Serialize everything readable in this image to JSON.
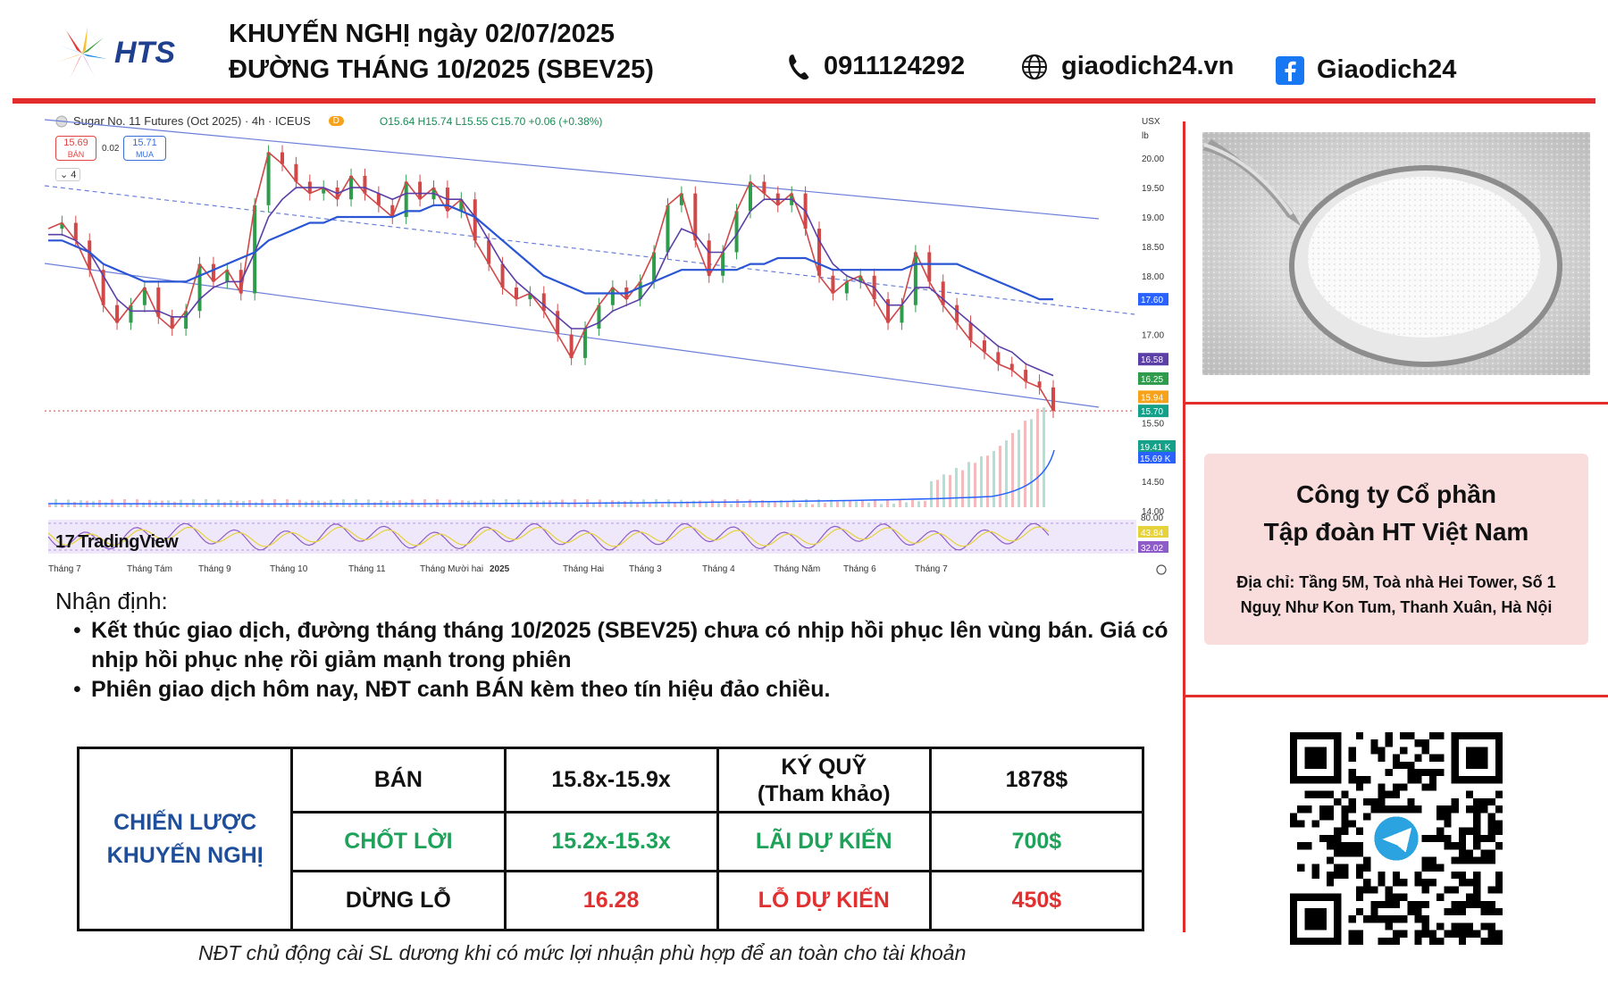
{
  "header": {
    "brand": "HTS",
    "title_line1": "KHUYẾN NGHỊ ngày 02/07/2025",
    "title_line2": "ĐƯỜNG THÁNG 10/2025 (SBEV25)",
    "phone": "0911124292",
    "website": "giaodich24.vn",
    "facebook": "Giaodich24",
    "accent_color": "#e32c2c"
  },
  "chart_header": {
    "symbol": "Sugar No. 11 Futures (Oct 2025) · 4h · ICEUS",
    "badge": "D",
    "ohlc": "O15.64 H15.74 L15.55 C15.70 +0.06 (+0.38%)",
    "sell_price": "15.69",
    "sell_label": "BÁN",
    "spread": "0.02",
    "buy_price": "15.71",
    "buy_label": "MUA",
    "collapse": "4",
    "currency": "USX",
    "unit": "lb",
    "brand": "TradingView"
  },
  "chart_data": {
    "type": "line",
    "title": "",
    "xlabel": "",
    "ylabel": "",
    "ylim": [
      14.0,
      20.2
    ],
    "x_ticks": [
      "Tháng 7",
      "Tháng Tám",
      "Tháng 9",
      "Tháng 10",
      "Tháng 11",
      "Tháng Mười hai",
      "2025",
      "Tháng Hai",
      "Tháng 3",
      "Tháng 4",
      "Tháng Năm",
      "Tháng 6",
      "Tháng 7"
    ],
    "y_ticks": [
      20.0,
      19.5,
      19.0,
      18.5,
      18.0,
      17.5,
      17.0,
      16.5,
      16.0,
      15.5,
      15.0,
      14.5,
      14.0
    ],
    "y_tick_labels": [
      "20.00",
      "19.50",
      "19.00",
      "18.50",
      "18.00",
      "",
      "17.00",
      "",
      "",
      "15.50",
      "",
      "14.50",
      "14.00"
    ],
    "price_labels": [
      {
        "value": 17.6,
        "text": "17.60",
        "color": "#2962ff"
      },
      {
        "value": 16.58,
        "text": "16.58",
        "color": "#5b3fa6"
      },
      {
        "value": 16.25,
        "text": "16.25",
        "color": "#2e9c4a"
      },
      {
        "value": 15.94,
        "text": "15.94",
        "color": "#f7a21b"
      },
      {
        "value": 15.7,
        "text": "15.70",
        "color": "#15a08a"
      }
    ],
    "volume_labels": [
      {
        "text": "19.41 K",
        "color": "#15a08a"
      },
      {
        "text": "15.69 K",
        "color": "#2962ff"
      }
    ],
    "rsi_labels": [
      {
        "text": "80.00",
        "color": ""
      },
      {
        "text": "43.84",
        "color": "#e6d23a"
      },
      {
        "text": "32.02",
        "color": "#8e5cc9"
      }
    ],
    "series": [
      {
        "color": "#d04848",
        "values": [
          18.8,
          18.9,
          18.6,
          18.1,
          17.5,
          17.2,
          17.5,
          17.8,
          17.3,
          17.1,
          17.4,
          18.2,
          17.9,
          18.1,
          17.7,
          19.2,
          20.1,
          19.9,
          19.6,
          19.4,
          19.5,
          19.3,
          19.7,
          19.4,
          19.2,
          19.0,
          19.6,
          19.3,
          19.5,
          19.1,
          19.3,
          18.6,
          18.2,
          17.8,
          17.6,
          17.7,
          17.4,
          17.0,
          16.6,
          17.1,
          17.5,
          17.8,
          17.6,
          17.9,
          18.4,
          19.2,
          19.4,
          18.6,
          18.0,
          18.4,
          19.1,
          19.6,
          19.4,
          19.2,
          19.4,
          18.8,
          18.0,
          17.7,
          17.9,
          18.0,
          17.6,
          17.2,
          17.5,
          18.4,
          17.9,
          17.5,
          17.2,
          16.9,
          16.7,
          16.5,
          16.4,
          16.2,
          16.1,
          15.7
        ]
      },
      {
        "color": "#5b3fa6",
        "values": [
          18.7,
          18.7,
          18.6,
          18.4,
          18.0,
          17.6,
          17.4,
          17.4,
          17.4,
          17.3,
          17.3,
          17.6,
          17.8,
          17.9,
          17.9,
          18.4,
          19.0,
          19.3,
          19.5,
          19.5,
          19.5,
          19.4,
          19.5,
          19.5,
          19.4,
          19.3,
          19.4,
          19.4,
          19.4,
          19.3,
          19.3,
          19.0,
          18.6,
          18.2,
          17.9,
          17.7,
          17.5,
          17.3,
          17.1,
          17.1,
          17.2,
          17.4,
          17.5,
          17.6,
          17.9,
          18.4,
          18.8,
          18.7,
          18.4,
          18.4,
          18.7,
          19.1,
          19.3,
          19.3,
          19.3,
          19.1,
          18.6,
          18.2,
          18.0,
          17.9,
          17.8,
          17.5,
          17.5,
          17.8,
          17.8,
          17.6,
          17.4,
          17.2,
          17.0,
          16.8,
          16.7,
          16.5,
          16.4,
          16.3
        ]
      },
      {
        "color": "#2a55d4",
        "values": [
          18.6,
          18.6,
          18.5,
          18.4,
          18.2,
          18.1,
          18.0,
          17.9,
          17.9,
          17.9,
          17.9,
          18.0,
          18.1,
          18.2,
          18.3,
          18.4,
          18.6,
          18.7,
          18.8,
          18.9,
          18.9,
          19.0,
          19.0,
          19.0,
          19.0,
          19.0,
          19.1,
          19.1,
          19.2,
          19.2,
          19.1,
          19.0,
          18.8,
          18.6,
          18.4,
          18.2,
          18.0,
          17.9,
          17.8,
          17.7,
          17.7,
          17.7,
          17.7,
          17.8,
          17.9,
          18.0,
          18.1,
          18.1,
          18.1,
          18.1,
          18.1,
          18.2,
          18.2,
          18.3,
          18.3,
          18.3,
          18.2,
          18.1,
          18.1,
          18.1,
          18.1,
          18.1,
          18.1,
          18.2,
          18.2,
          18.2,
          18.2,
          18.1,
          18.0,
          17.9,
          17.8,
          17.7,
          17.6,
          17.6
        ]
      }
    ]
  },
  "assessment": {
    "heading": "Nhận định:",
    "bullets": [
      "Kết thúc giao dịch, đường tháng tháng 10/2025 (SBEV25) chưa có nhịp hồi phục lên vùng bán. Giá có nhịp hồi phục nhẹ rồi giảm mạnh trong phiên",
      "Phiên giao dịch hôm nay, NĐT canh BÁN kèm theo tín hiệu đảo chiều."
    ]
  },
  "strategy": {
    "label_line1": "CHIẾN LƯỢC",
    "label_line2": "KHUYẾN NGHỊ",
    "rows": [
      {
        "action": "BÁN",
        "price": "15.8x-15.9x",
        "metric_line1": "KÝ QUỸ",
        "metric_line2": "(Tham khảo)",
        "value": "1878$"
      },
      {
        "action": "CHỐT LỜI",
        "price": "15.2x-15.3x",
        "metric_line1": "LÃI DỰ KIẾN",
        "metric_line2": "",
        "value": "700$"
      },
      {
        "action": "DỪNG LỖ",
        "price": "16.28",
        "metric_line1": "LỖ DỰ KIẾN",
        "metric_line2": "",
        "value": "450$"
      }
    ],
    "note": "NĐT chủ động cài SL dương khi có mức lợi nhuận phù hợp để an toàn cho tài khoản"
  },
  "company": {
    "name_line1": "Công ty Cổ phần",
    "name_line2": "Tập đoàn HT Việt Nam",
    "address_line1": "Địa chỉ: Tầng 5M, Toà nhà Hei Tower, Số 1",
    "address_line2": "Nguỵ Như Kon Tum, Thanh Xuân, Hà Nội"
  }
}
